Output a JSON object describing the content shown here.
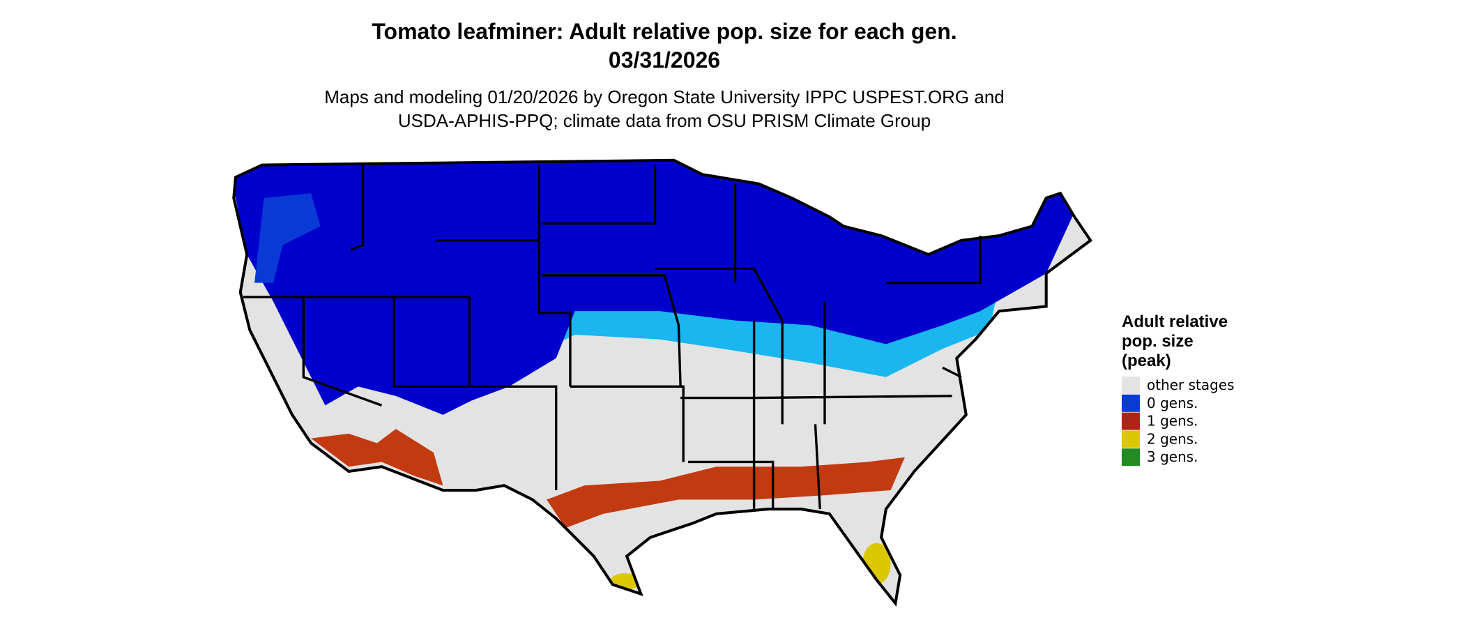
{
  "title": "Tomato leafminer: Adult relative pop. size for each gen.",
  "date": "03/31/2026",
  "subtitle": [
    "Maps and modeling 01/20/2026 by Oregon State University IPPC USPEST.ORG and",
    "USDA-APHIS-PPQ; climate data from OSU PRISM Climate Group"
  ],
  "legend": {
    "title": [
      "Adult relative",
      "pop. size",
      "(peak)"
    ],
    "items": [
      {
        "label": "other stages",
        "color": "#e3e3e3"
      },
      {
        "label": "0 gens.",
        "color": "#0a3ad6"
      },
      {
        "label": "1 gens.",
        "color": "#b02418"
      },
      {
        "label": "2 gens.",
        "color": "#dcc800"
      },
      {
        "label": "3 gens.",
        "color": "#228b22"
      }
    ]
  }
}
